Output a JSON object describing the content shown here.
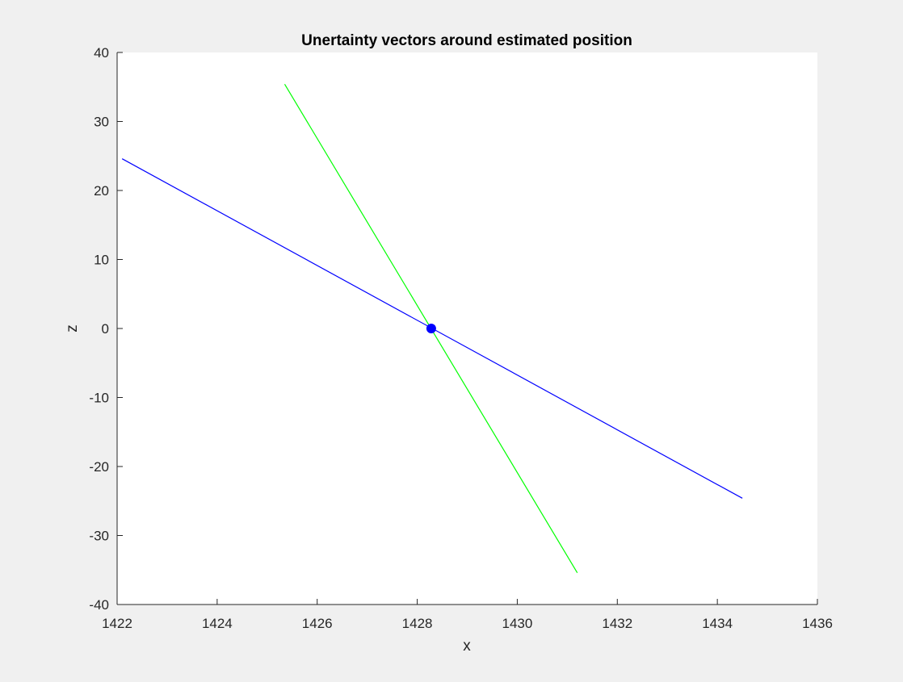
{
  "chart_data": {
    "type": "line",
    "title": "Unertainty vectors around estimated position",
    "xlabel": "x",
    "ylabel": "z",
    "xlim": [
      1422,
      1436
    ],
    "ylim": [
      -40,
      40
    ],
    "xticks": [
      1422,
      1424,
      1426,
      1428,
      1430,
      1432,
      1434,
      1436
    ],
    "yticks": [
      -40,
      -30,
      -20,
      -10,
      0,
      10,
      20,
      30,
      40
    ],
    "grid": false,
    "series": [
      {
        "color": "#0000ff",
        "x": [
          1422.1,
          1434.5
        ],
        "y": [
          24.6,
          -24.6
        ]
      },
      {
        "color": "#00ff00",
        "x": [
          1425.35,
          1431.2
        ],
        "y": [
          35.4,
          -35.4
        ]
      }
    ],
    "points": [
      {
        "x": 1428.28,
        "y": 0,
        "color": "#0000ff"
      }
    ]
  }
}
